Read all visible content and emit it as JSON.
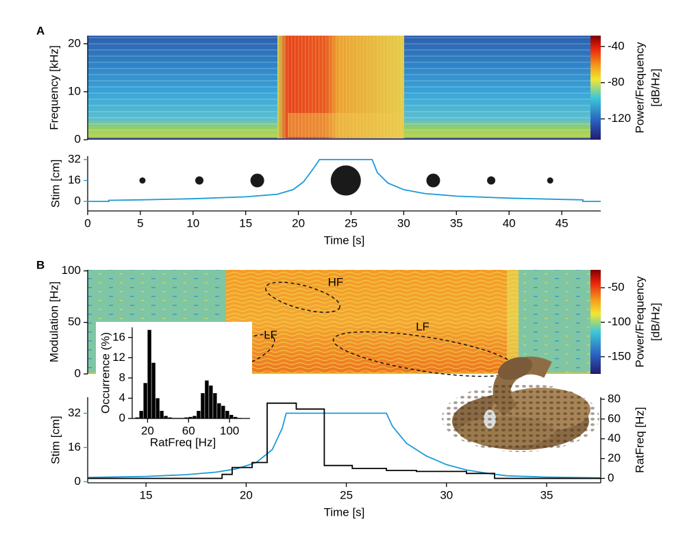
{
  "chart_data": [
    {
      "type": "heatmap",
      "panel": "A",
      "ylabel": "Frequency [kHz]",
      "ylim": [
        0,
        21.7
      ],
      "yticks": [
        0,
        10,
        20
      ],
      "clim": [
        -143,
        -28
      ],
      "cticks": [
        -40,
        -80,
        -120
      ],
      "colorbar_label": [
        "Power/Frequency",
        "[dB/Hz]"
      ]
    },
    {
      "type": "line",
      "ylabel": "Stim [cm]",
      "xlabel": "Time [s]",
      "color": "#1a9ad6",
      "xlim": [
        0,
        48.7
      ],
      "xticks": [
        0,
        5,
        10,
        15,
        20,
        25,
        30,
        35,
        40,
        45
      ],
      "ylim": [
        -7.3,
        34.6
      ],
      "yticks": [
        0,
        16,
        32
      ],
      "x": [
        0,
        2,
        2,
        5,
        10,
        15,
        18,
        19.5,
        20.5,
        21.5,
        22,
        27,
        27.5,
        28.5,
        30,
        32,
        35,
        40,
        45,
        47,
        47,
        48.7
      ],
      "values": [
        0,
        0,
        0.8,
        1.2,
        2,
        3.5,
        5.5,
        9,
        15,
        26,
        32,
        32,
        22,
        14,
        9,
        6,
        4,
        2.5,
        1.5,
        1.2,
        0,
        0
      ],
      "markers": {
        "color": "#1a1a1a",
        "x": [
          5.2,
          10.6,
          16.1,
          24.5,
          32.8,
          38.3,
          43.9
        ],
        "values": [
          16,
          16,
          16,
          16,
          16,
          16,
          16
        ],
        "sizes": [
          9,
          12,
          20,
          44,
          20,
          12,
          9
        ]
      }
    },
    {
      "type": "heatmap",
      "panel": "B",
      "ylabel": "Modulation [Hz]",
      "ylim": [
        0,
        101
      ],
      "yticks": [
        0,
        50,
        100
      ],
      "clim": [
        -175,
        -24
      ],
      "cticks": [
        -50,
        -100,
        -150
      ],
      "colorbar_label": [
        "Power/Frequency",
        "[dB/Hz]"
      ],
      "annotations": [
        "HF",
        "LF",
        "LF"
      ]
    },
    {
      "type": "line",
      "ylabel": "Stim [cm]",
      "y2label": "RatFreq [Hz]",
      "xlabel": "Time [s]",
      "xlim": [
        12.09,
        37.7
      ],
      "xticks": [
        15,
        20,
        25,
        30,
        35
      ],
      "ylim": [
        -0.5,
        39.5
      ],
      "yticks": [
        0,
        16,
        32
      ],
      "y2lim": [
        -4.5,
        82
      ],
      "y2ticks": [
        0,
        20,
        40,
        60,
        80
      ],
      "series": [
        {
          "color": "#1a9ad6",
          "x": [
            12.09,
            15,
            17,
            18.5,
            19.5,
            20.5,
            21.3,
            21.8,
            22,
            27,
            27.3,
            28,
            29,
            30,
            31,
            32,
            33,
            35,
            37.7
          ],
          "values": [
            2,
            2.5,
            3.3,
            4.5,
            6,
            9,
            15,
            25,
            32,
            32,
            26,
            18,
            12,
            8,
            5.5,
            4,
            2.8,
            2.2,
            1.8
          ]
        },
        {
          "color": "#000000",
          "axis": "y2",
          "x": [
            12.09,
            18.8,
            18.8,
            19.3,
            19.3,
            20.3,
            20.3,
            21.05,
            21.05,
            22.5,
            22.5,
            23.9,
            23.9,
            25.3,
            25.3,
            27,
            27,
            28.5,
            28.5,
            31,
            31,
            32.4,
            32.4,
            37.7
          ],
          "values": [
            0,
            0,
            4,
            4,
            11,
            11,
            16,
            16,
            76,
            76,
            70,
            70,
            13,
            13,
            10,
            10,
            8,
            8,
            7,
            7,
            5,
            5,
            0,
            0
          ]
        }
      ]
    },
    {
      "type": "histogram",
      "ylabel": "Occurrence (%)",
      "xlabel": "RatFreq [Hz]",
      "color": "#000000",
      "xlim": [
        5,
        120
      ],
      "xticks": [
        20,
        60,
        100
      ],
      "ylim": [
        0,
        18
      ],
      "yticks": [
        0,
        4,
        8,
        12,
        16
      ],
      "bins": [
        8,
        12,
        16,
        20,
        24,
        28,
        32,
        36,
        40,
        44,
        48,
        52,
        56,
        60,
        64,
        68,
        72,
        76,
        80,
        84,
        88,
        92,
        96,
        100,
        104,
        108,
        112,
        116,
        120
      ],
      "values": [
        0.2,
        1.5,
        7,
        17.5,
        11,
        4,
        1.5,
        0.5,
        0.2,
        0.1,
        0.1,
        0.1,
        0.2,
        0.3,
        0.5,
        1.5,
        5,
        7.5,
        6.5,
        5,
        3,
        2.5,
        1.5,
        0.7,
        0.3,
        0.1,
        0,
        0
      ]
    }
  ]
}
